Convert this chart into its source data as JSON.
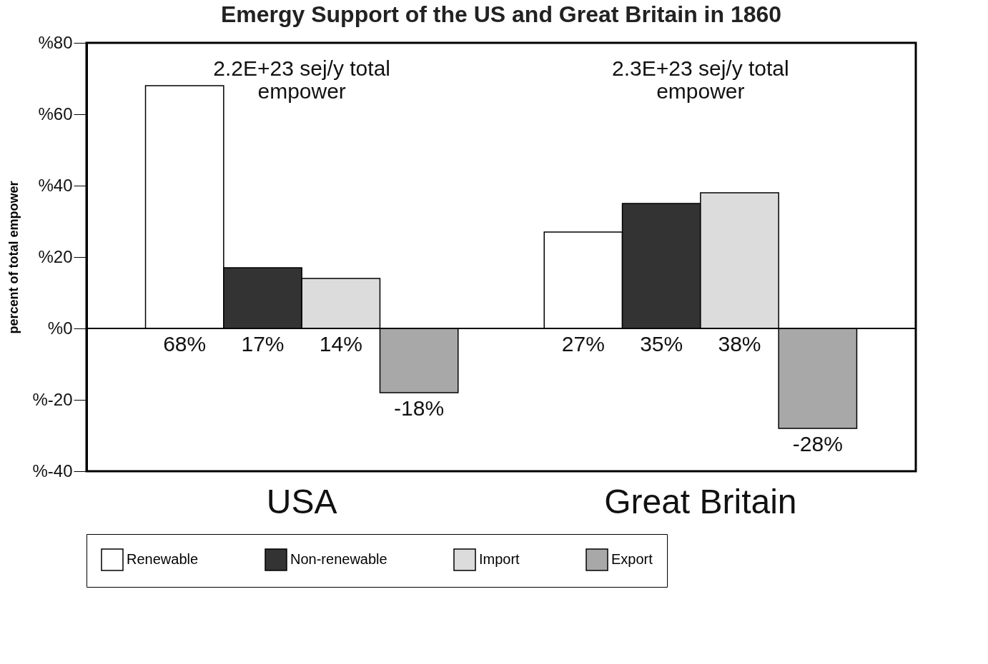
{
  "chart_data": {
    "type": "bar",
    "title": "Emergy Support of the US and Great Britain in 1860",
    "ylabel": "percent of total empower",
    "categories": [
      "USA",
      "Great Britain"
    ],
    "series": [
      {
        "name": "Renewable",
        "color": "#ffffff",
        "values": [
          68,
          27
        ],
        "value_labels": [
          "68%",
          "27%"
        ]
      },
      {
        "name": "Non-renewable",
        "color": "#333333",
        "values": [
          17,
          35
        ],
        "value_labels": [
          "17%",
          "35%"
        ]
      },
      {
        "name": "Import",
        "color": "#dcdcdc",
        "values": [
          14,
          38
        ],
        "value_labels": [
          "14%",
          "38%"
        ]
      },
      {
        "name": "Export",
        "color": "#a8a8a8",
        "values": [
          -18,
          -28
        ],
        "value_labels": [
          "-18%",
          "-28%"
        ]
      }
    ],
    "ylim": [
      -40,
      80
    ],
    "yticks": [
      {
        "value": 80,
        "label": "%80"
      },
      {
        "value": 60,
        "label": "%60"
      },
      {
        "value": 40,
        "label": "%40"
      },
      {
        "value": 20,
        "label": "%20"
      },
      {
        "value": 0,
        "label": "%0"
      },
      {
        "value": -20,
        "label": "%-20"
      },
      {
        "value": -40,
        "label": "%-40"
      }
    ],
    "ref_lines": [
      {
        "axis": "y",
        "value": 0
      }
    ],
    "annotations": [
      "2.2E+23 sej/y total empower",
      "2.3E+23 sej/y total empower"
    ],
    "legend": "bottom",
    "grid": false
  }
}
